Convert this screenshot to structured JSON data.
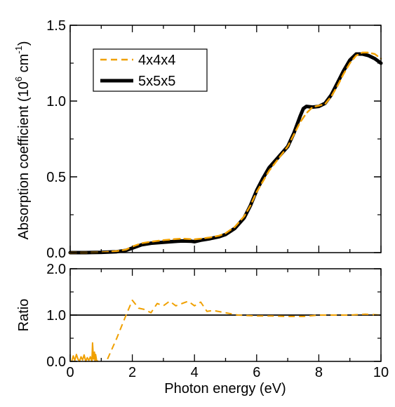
{
  "chart_data": [
    {
      "type": "line",
      "panel": "top",
      "title": "",
      "xlabel": "",
      "ylabel": "Absorption coefficient (10^6 cm^-1)",
      "ylabel_parts": {
        "base": "Absorption coefficient (10",
        "exp1": "6",
        "mid": " cm",
        "exp2": "-1",
        "end": ")"
      },
      "xlim": [
        0,
        10
      ],
      "ylim": [
        0,
        1.5
      ],
      "ytick_labels": [
        "0.0",
        "0.5",
        "1.0",
        "1.5"
      ],
      "ytick_values": [
        0,
        0.5,
        1.0,
        1.5
      ],
      "grid": false,
      "legend_position": "top-left",
      "series": [
        {
          "name": "4x4x4",
          "style": "dashed",
          "color": "#f0a000",
          "x": [
            0,
            0.5,
            1.0,
            1.5,
            1.8,
            2.0,
            2.3,
            2.6,
            3.0,
            3.3,
            3.6,
            4.0,
            4.2,
            4.5,
            4.8,
            5.0,
            5.3,
            5.6,
            5.8,
            6.0,
            6.2,
            6.4,
            6.7,
            7.0,
            7.2,
            7.4,
            7.6,
            7.8,
            8.0,
            8.2,
            8.4,
            8.6,
            8.8,
            9.0,
            9.2,
            9.4,
            9.6,
            9.8,
            10.0
          ],
          "y": [
            0.0,
            0.0,
            0.002,
            0.01,
            0.02,
            0.04,
            0.062,
            0.072,
            0.082,
            0.088,
            0.092,
            0.088,
            0.092,
            0.1,
            0.112,
            0.128,
            0.17,
            0.24,
            0.31,
            0.4,
            0.47,
            0.54,
            0.62,
            0.7,
            0.78,
            0.86,
            0.92,
            0.96,
            0.97,
            0.98,
            1.03,
            1.1,
            1.18,
            1.25,
            1.3,
            1.32,
            1.32,
            1.31,
            1.28
          ]
        },
        {
          "name": "5x5x5",
          "style": "solid",
          "color": "#000000",
          "x": [
            0,
            0.5,
            1.0,
            1.5,
            1.8,
            2.0,
            2.3,
            2.6,
            3.0,
            3.3,
            3.6,
            3.9,
            4.0,
            4.2,
            4.5,
            4.8,
            5.0,
            5.3,
            5.6,
            5.8,
            6.0,
            6.2,
            6.4,
            6.7,
            7.0,
            7.2,
            7.4,
            7.5,
            7.6,
            7.8,
            8.0,
            8.2,
            8.4,
            8.6,
            8.8,
            9.0,
            9.2,
            9.4,
            9.6,
            9.8,
            10.0
          ],
          "y": [
            0.0,
            0.0,
            0.002,
            0.006,
            0.015,
            0.03,
            0.052,
            0.062,
            0.068,
            0.073,
            0.077,
            0.075,
            0.072,
            0.082,
            0.092,
            0.105,
            0.12,
            0.16,
            0.23,
            0.31,
            0.41,
            0.49,
            0.56,
            0.63,
            0.7,
            0.79,
            0.9,
            0.95,
            0.965,
            0.96,
            0.965,
            0.985,
            1.04,
            1.12,
            1.2,
            1.27,
            1.31,
            1.31,
            1.3,
            1.28,
            1.25
          ]
        }
      ]
    },
    {
      "type": "line",
      "panel": "bottom",
      "title": "",
      "xlabel": "Photon energy (eV)",
      "ylabel": "Ratio",
      "xlim": [
        0,
        10
      ],
      "ylim": [
        0,
        2.0
      ],
      "xtick_labels": [
        "0",
        "2",
        "4",
        "6",
        "8",
        "10"
      ],
      "xtick_values": [
        0,
        2,
        4,
        6,
        8,
        10
      ],
      "ytick_labels": [
        "0.0",
        "1.0",
        "2.0"
      ],
      "ytick_values": [
        0,
        1.0,
        2.0
      ],
      "grid": false,
      "reference_line": {
        "y": 1.0,
        "color": "#000000"
      },
      "series": [
        {
          "name": "",
          "style": "solid-noisy",
          "color": "#f0a000",
          "x": [
            0.05,
            0.1,
            0.15,
            0.2,
            0.25,
            0.3,
            0.35,
            0.4,
            0.45,
            0.5,
            0.55,
            0.6,
            0.65,
            0.7,
            0.72,
            0.75,
            0.78,
            0.8,
            0.82,
            0.85,
            0.9
          ],
          "y": [
            0.0,
            0.12,
            0.02,
            0.15,
            0.05,
            0.0,
            0.1,
            0.03,
            0.14,
            0.0,
            0.08,
            0.02,
            0.1,
            0.0,
            0.4,
            0.05,
            0.2,
            0.0,
            0.15,
            0.02,
            0.0
          ]
        },
        {
          "name": "",
          "style": "dashed",
          "color": "#f0a000",
          "x": [
            1.2,
            1.5,
            1.8,
            2.0,
            2.2,
            2.4,
            2.6,
            2.8,
            3.0,
            3.2,
            3.4,
            3.6,
            3.8,
            4.0,
            4.2,
            4.4,
            4.6,
            5.0,
            5.4,
            6.0,
            6.5,
            7.0,
            7.5,
            8.0,
            8.5,
            9.0,
            9.5,
            10.0
          ],
          "y": [
            0.05,
            0.5,
            1.0,
            1.32,
            1.15,
            1.12,
            1.05,
            1.25,
            1.2,
            1.3,
            1.2,
            1.25,
            1.3,
            1.2,
            1.28,
            1.08,
            1.1,
            1.05,
            1.0,
            0.98,
            0.98,
            0.97,
            0.97,
            1.0,
            1.0,
            1.0,
            1.02,
            1.0
          ]
        }
      ]
    }
  ]
}
